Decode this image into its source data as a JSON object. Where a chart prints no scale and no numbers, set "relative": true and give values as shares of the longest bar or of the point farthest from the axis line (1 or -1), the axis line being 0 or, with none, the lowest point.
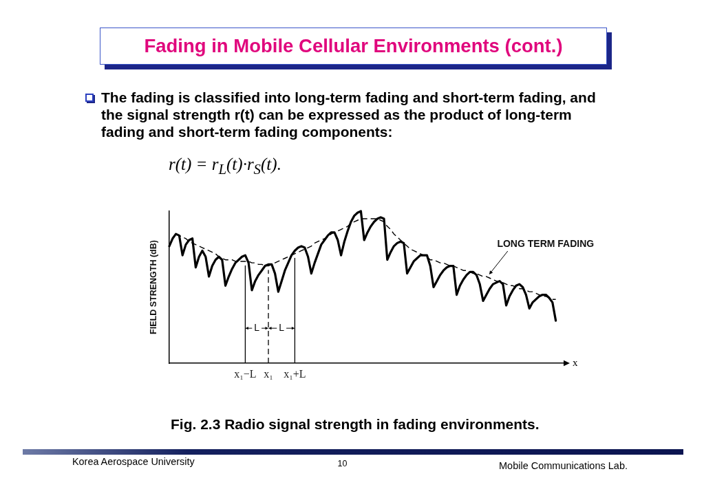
{
  "chart_data": {
    "type": "line",
    "title": "Fading in Mobile Cellular Environments (cont.)",
    "subtitle": "The fading is classified into long-term fading and short-term fading, and the signal strength r(t) can be expressed as the product of long-term fading and short-term fading components:",
    "xlabel": "x",
    "ylabel": "FIELD STRENGTH (dB)",
    "relative": true,
    "categories": [
      null,
      null,
      null,
      null,
      null,
      null,
      null,
      null,
      null,
      null,
      null,
      null,
      null,
      null,
      null,
      null,
      null,
      null,
      null,
      null,
      null,
      null,
      null,
      "x₁−L",
      null,
      null,
      null,
      null,
      null,
      null,
      "x₁",
      null,
      null,
      null,
      null,
      null,
      null,
      null,
      "x₁+L",
      null,
      null,
      null,
      null,
      null,
      null,
      null,
      null,
      null,
      null,
      null,
      null,
      null,
      null,
      null,
      null,
      null,
      null,
      null,
      null,
      null,
      null,
      null,
      null,
      null,
      null,
      null,
      null,
      null,
      null,
      null,
      null,
      null,
      null,
      null,
      null,
      null,
      null,
      null,
      null,
      null,
      null,
      null,
      null,
      null,
      null,
      null,
      null,
      null,
      null,
      null,
      null,
      null,
      null,
      null,
      null,
      null,
      null,
      null,
      null,
      null,
      null,
      null,
      null,
      null,
      null,
      null,
      null,
      null,
      null,
      null,
      null,
      null,
      null,
      null,
      null,
      null,
      null,
      null,
      null,
      null,
      null
    ],
    "series": [
      {
        "color": "#000000",
        "line_style": "solid",
        "values": [
          0.77,
          0.82,
          0.85,
          0.84,
          0.71,
          0.78,
          0.81,
          0.82,
          0.63,
          0.7,
          0.74,
          0.7,
          0.57,
          0.64,
          0.68,
          0.7,
          0.68,
          0.51,
          0.57,
          0.62,
          0.66,
          0.68,
          0.7,
          0.71,
          0.66,
          0.48,
          0.54,
          0.58,
          0.61,
          0.64,
          0.65,
          0.65,
          0.59,
          0.47,
          0.54,
          0.61,
          0.66,
          0.71,
          0.74,
          0.76,
          0.77,
          0.76,
          0.7,
          0.59,
          0.66,
          0.72,
          0.78,
          0.81,
          0.84,
          0.86,
          0.86,
          0.81,
          0.71,
          0.8,
          0.87,
          0.93,
          0.97,
          0.99,
          1,
          0.81,
          0.86,
          0.9,
          0.93,
          0.95,
          0.96,
          0.95,
          0.68,
          0.73,
          0.77,
          0.79,
          0.8,
          0.79,
          0.59,
          0.63,
          0.67,
          0.69,
          0.71,
          0.71,
          0.71,
          0.64,
          0.5,
          0.54,
          0.58,
          0.61,
          0.63,
          0.64,
          0.64,
          0.45,
          0.51,
          0.55,
          0.58,
          0.6,
          0.6,
          0.58,
          0.52,
          0.41,
          0.45,
          0.49,
          0.52,
          0.53,
          0.54,
          0.52,
          0.38,
          0.44,
          0.48,
          0.51,
          0.52,
          0.5,
          0.45,
          0.36,
          0.4,
          0.42,
          0.44,
          0.45,
          0.45,
          0.43,
          0.4,
          0.28,
          null,
          null,
          null
        ]
      },
      {
        "name": "LONG TERM FADING",
        "color": "#000000",
        "line_style": "dashed",
        "values": [
          null,
          null,
          0.85,
          0.84,
          0.83,
          0.82,
          0.8,
          0.79,
          0.78,
          0.77,
          0.76,
          0.75,
          0.74,
          0.73,
          0.72,
          0.7,
          0.69,
          0.68,
          0.68,
          0.68,
          0.67,
          0.67,
          0.67,
          0.67,
          0.67,
          0.66,
          0.66,
          0.65,
          0.65,
          0.64,
          0.64,
          0.65,
          0.66,
          0.67,
          0.68,
          0.69,
          0.7,
          0.71,
          0.72,
          0.73,
          0.74,
          0.75,
          0.76,
          0.77,
          0.79,
          0.8,
          0.81,
          0.82,
          0.83,
          0.85,
          0.86,
          0.87,
          0.88,
          0.89,
          0.9,
          0.92,
          0.93,
          0.94,
          0.95,
          0.95,
          0.95,
          0.95,
          0.95,
          0.95,
          0.94,
          0.93,
          0.9,
          0.88,
          0.85,
          0.83,
          0.81,
          0.79,
          0.77,
          0.75,
          0.74,
          0.73,
          0.72,
          0.71,
          0.7,
          0.68,
          0.68,
          0.67,
          0.66,
          0.66,
          0.65,
          0.64,
          0.64,
          0.63,
          0.62,
          0.61,
          0.61,
          0.6,
          0.59,
          0.59,
          0.58,
          0.57,
          0.57,
          0.56,
          0.55,
          0.54,
          0.54,
          0.53,
          0.52,
          0.51,
          0.51,
          0.5,
          0.49,
          0.49,
          0.48,
          0.47,
          0.47,
          0.46,
          0.45,
          0.44,
          0.44,
          0.43,
          0.42,
          0.42,
          null,
          null,
          null
        ]
      }
    ],
    "ref_lines": [
      {
        "axis": "x",
        "value": "x₁−L",
        "line_style": "solid"
      },
      {
        "axis": "x",
        "value": "x₁",
        "line_style": "dashed"
      },
      {
        "axis": "x",
        "value": "x₁+L",
        "line_style": "solid"
      }
    ],
    "annotations": [
      "r(t) = r$_{L}$(t)·r$_{S}$(t).",
      "L",
      "L",
      "Fig. 2.3 Radio signal strength in fading environments.",
      "Korea Aerospace University",
      "10",
      "Mobile Communications Lab."
    ]
  }
}
